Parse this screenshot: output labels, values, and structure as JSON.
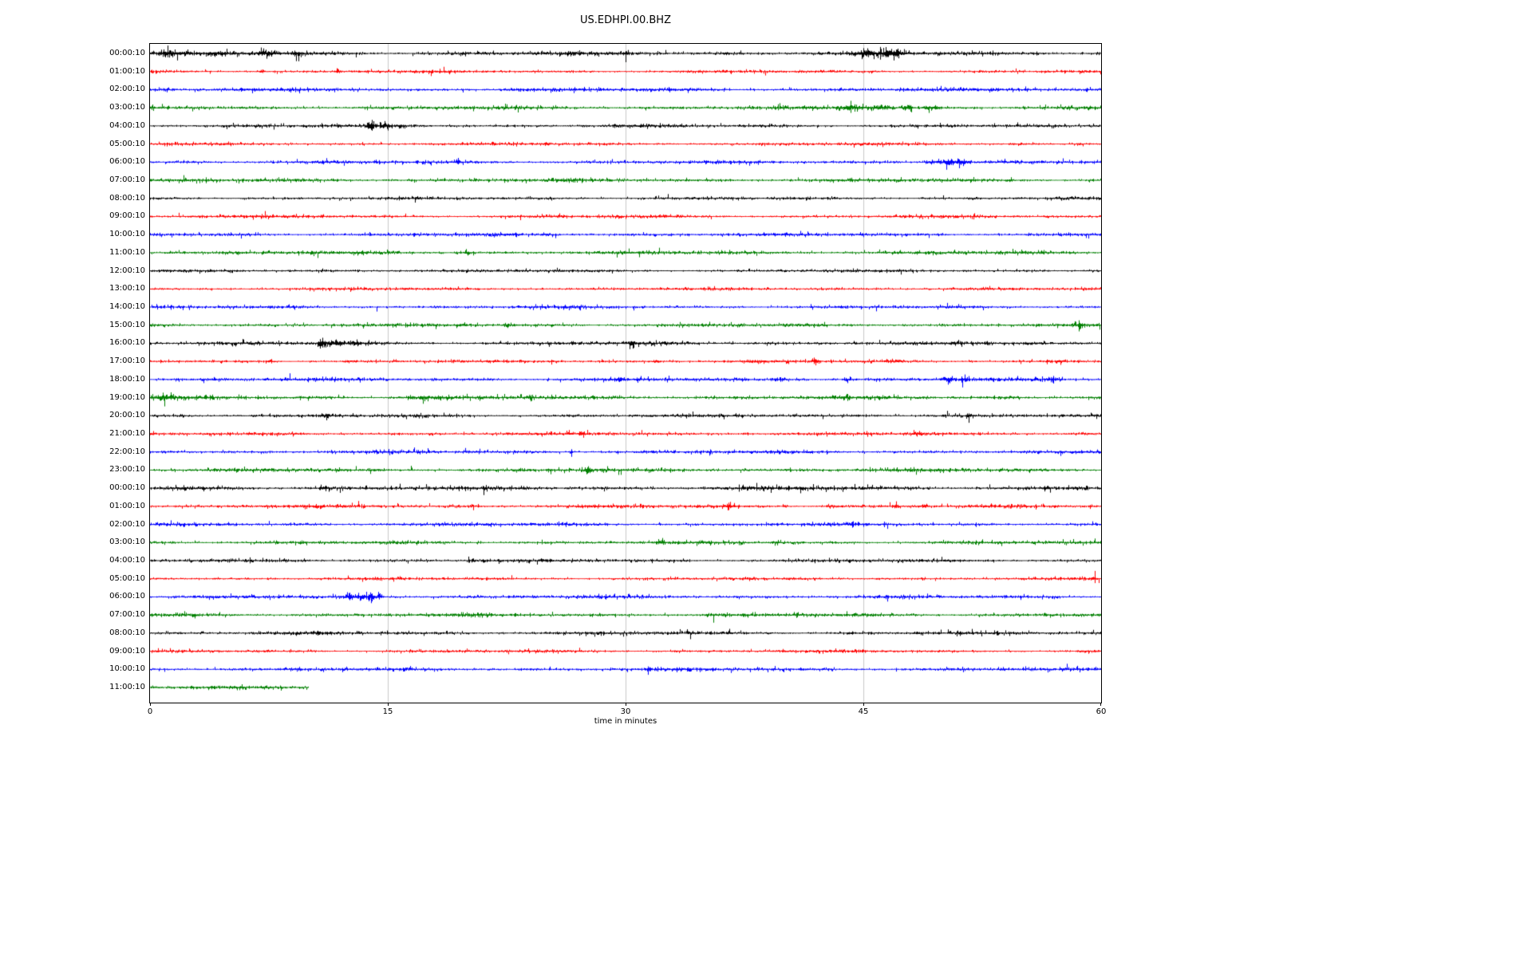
{
  "page": {
    "background": "#ffffff"
  },
  "chart_data": {
    "type": "line",
    "subtype": "seismogram_dayplot",
    "title": "US.EDHPI.00.BHZ",
    "xlabel": "time in minutes",
    "xlim": [
      0,
      60
    ],
    "x_ticks": [
      0,
      15,
      30,
      45,
      60
    ],
    "gridlines_x": [
      15,
      30,
      45
    ],
    "grid_color": "#c9c9c9",
    "axis_color": "#000000",
    "color_cycle": [
      "#000000",
      "#ff0000",
      "#0000ff",
      "#008000"
    ],
    "rows": [
      {
        "label": "00:00:10",
        "color": "#000000",
        "extent_min": 60,
        "base_amp": 1.7,
        "events": [
          {
            "t": 1.2,
            "a": 1.2,
            "d": 1.2
          },
          {
            "t": 4.5,
            "a": 0.6,
            "d": 0.8
          },
          {
            "t": 7.3,
            "a": 1.2,
            "d": 0.6
          },
          {
            "t": 9.3,
            "a": 1.0,
            "d": 0.5
          },
          {
            "t": 30.0,
            "a": 1.8,
            "d": 0.15
          },
          {
            "t": 36.3,
            "a": 0.8,
            "d": 0.2
          },
          {
            "t": 45.3,
            "a": 1.6,
            "d": 0.6
          },
          {
            "t": 46.9,
            "a": 1.8,
            "d": 0.9
          },
          {
            "t": 56.0,
            "a": 0.5,
            "d": 0.4
          }
        ]
      },
      {
        "label": "01:00:10",
        "color": "#ff0000",
        "extent_min": 60,
        "base_amp": 1.2,
        "events": [
          {
            "t": 7.0,
            "a": 2.8,
            "d": 0.25
          },
          {
            "t": 11.8,
            "a": 2.2,
            "d": 0.2
          }
        ]
      },
      {
        "label": "02:00:10",
        "color": "#0000ff",
        "extent_min": 60,
        "base_amp": 1.5,
        "events": [
          {
            "t": 23.0,
            "a": 0.5,
            "d": 0.5
          },
          {
            "t": 55.3,
            "a": 1.2,
            "d": 0.2
          }
        ]
      },
      {
        "label": "03:00:10",
        "color": "#008000",
        "extent_min": 60,
        "base_amp": 1.5,
        "events": [
          {
            "t": 44.3,
            "a": 1.2,
            "d": 0.8
          },
          {
            "t": 46.0,
            "a": 1.8,
            "d": 0.8
          },
          {
            "t": 47.8,
            "a": 2.2,
            "d": 0.4
          },
          {
            "t": 49.3,
            "a": 1.4,
            "d": 0.6
          }
        ]
      },
      {
        "label": "04:00:10",
        "color": "#000000",
        "extent_min": 60,
        "base_amp": 1.3,
        "events": [
          {
            "t": 13.9,
            "a": 3.5,
            "d": 0.25
          },
          {
            "t": 14.8,
            "a": 1.5,
            "d": 0.7
          },
          {
            "t": 15.8,
            "a": 1.0,
            "d": 0.5
          }
        ]
      },
      {
        "label": "05:00:10",
        "color": "#ff0000",
        "extent_min": 60,
        "base_amp": 1.2,
        "events": [
          {
            "t": 25.0,
            "a": 2.0,
            "d": 0.25
          },
          {
            "t": 54.5,
            "a": 0.8,
            "d": 0.3
          },
          {
            "t": 58.5,
            "a": 1.0,
            "d": 0.3
          }
        ]
      },
      {
        "label": "06:00:10",
        "color": "#0000ff",
        "extent_min": 60,
        "base_amp": 1.4,
        "events": [
          {
            "t": 19.4,
            "a": 2.2,
            "d": 0.18
          },
          {
            "t": 49.3,
            "a": 2.0,
            "d": 0.6
          },
          {
            "t": 50.3,
            "a": 4.5,
            "d": 0.5
          },
          {
            "t": 51.2,
            "a": 2.5,
            "d": 0.5
          }
        ]
      },
      {
        "label": "07:00:10",
        "color": "#008000",
        "extent_min": 60,
        "base_amp": 1.5,
        "events": []
      },
      {
        "label": "08:00:10",
        "color": "#000000",
        "extent_min": 60,
        "base_amp": 1.2,
        "events": []
      },
      {
        "label": "09:00:10",
        "color": "#ff0000",
        "extent_min": 60,
        "base_amp": 1.3,
        "events": []
      },
      {
        "label": "10:00:10",
        "color": "#0000ff",
        "extent_min": 60,
        "base_amp": 1.4,
        "events": [
          {
            "t": 25.0,
            "a": 0.5,
            "d": 0.5
          }
        ]
      },
      {
        "label": "11:00:10",
        "color": "#008000",
        "extent_min": 60,
        "base_amp": 1.5,
        "events": [
          {
            "t": 1.5,
            "a": 0.7,
            "d": 1.2
          },
          {
            "t": 20.0,
            "a": 1.6,
            "d": 0.2
          }
        ]
      },
      {
        "label": "12:00:10",
        "color": "#000000",
        "extent_min": 60,
        "base_amp": 1.2,
        "events": [
          {
            "t": 9.0,
            "a": 0.6,
            "d": 0.3
          }
        ]
      },
      {
        "label": "13:00:10",
        "color": "#ff0000",
        "extent_min": 60,
        "base_amp": 1.2,
        "events": []
      },
      {
        "label": "14:00:10",
        "color": "#0000ff",
        "extent_min": 60,
        "base_amp": 1.3,
        "events": []
      },
      {
        "label": "15:00:10",
        "color": "#008000",
        "extent_min": 60,
        "base_amp": 1.4,
        "events": [
          {
            "t": 19.7,
            "a": 1.2,
            "d": 0.5
          },
          {
            "t": 22.5,
            "a": 0.7,
            "d": 0.4
          },
          {
            "t": 58.6,
            "a": 1.1,
            "d": 0.4
          }
        ]
      },
      {
        "label": "16:00:10",
        "color": "#000000",
        "extent_min": 60,
        "base_amp": 1.4,
        "events": [
          {
            "t": 10.8,
            "a": 4.5,
            "d": 0.3
          },
          {
            "t": 11.6,
            "a": 2.2,
            "d": 0.6
          },
          {
            "t": 13.0,
            "a": 1.2,
            "d": 1.2
          },
          {
            "t": 30.4,
            "a": 1.6,
            "d": 0.3
          },
          {
            "t": 39.0,
            "a": 1.0,
            "d": 0.3
          },
          {
            "t": 44.5,
            "a": 0.8,
            "d": 0.3
          },
          {
            "t": 50.8,
            "a": 1.0,
            "d": 0.4
          },
          {
            "t": 52.8,
            "a": 1.0,
            "d": 0.3
          },
          {
            "t": 55.5,
            "a": 0.6,
            "d": 0.3
          }
        ]
      },
      {
        "label": "17:00:10",
        "color": "#ff0000",
        "extent_min": 60,
        "base_amp": 1.3,
        "events": [
          {
            "t": 7.5,
            "a": 2.5,
            "d": 0.4
          },
          {
            "t": 25.3,
            "a": 0.8,
            "d": 0.3
          },
          {
            "t": 32.0,
            "a": 0.7,
            "d": 0.3
          },
          {
            "t": 42.0,
            "a": 1.0,
            "d": 0.3
          },
          {
            "t": 47.0,
            "a": 1.1,
            "d": 0.4
          },
          {
            "t": 51.8,
            "a": 1.4,
            "d": 0.3
          },
          {
            "t": 57.3,
            "a": 1.0,
            "d": 0.3
          }
        ]
      },
      {
        "label": "18:00:10",
        "color": "#0000ff",
        "extent_min": 60,
        "base_amp": 1.5,
        "events": [
          {
            "t": 29.5,
            "a": 0.7,
            "d": 0.4
          },
          {
            "t": 39.8,
            "a": 1.3,
            "d": 0.6
          },
          {
            "t": 41.0,
            "a": 0.8,
            "d": 0.4
          },
          {
            "t": 44.0,
            "a": 1.1,
            "d": 0.4
          },
          {
            "t": 50.3,
            "a": 1.5,
            "d": 0.5
          },
          {
            "t": 51.3,
            "a": 1.5,
            "d": 0.4
          },
          {
            "t": 57.0,
            "a": 1.2,
            "d": 0.4
          }
        ]
      },
      {
        "label": "19:00:10",
        "color": "#008000",
        "extent_min": 60,
        "base_amp": 1.6,
        "events": [
          {
            "t": 0.8,
            "a": 1.0,
            "d": 0.7
          },
          {
            "t": 16.4,
            "a": 1.3,
            "d": 0.4
          },
          {
            "t": 17.2,
            "a": 1.7,
            "d": 0.4
          },
          {
            "t": 18.2,
            "a": 0.8,
            "d": 0.4
          },
          {
            "t": 24.0,
            "a": 1.2,
            "d": 0.25
          }
        ]
      },
      {
        "label": "20:00:10",
        "color": "#000000",
        "extent_min": 60,
        "base_amp": 1.3,
        "events": [
          {
            "t": 2.0,
            "a": 0.6,
            "d": 0.4
          },
          {
            "t": 6.5,
            "a": 0.6,
            "d": 0.4
          },
          {
            "t": 11.0,
            "a": 1.0,
            "d": 0.5
          },
          {
            "t": 27.0,
            "a": 0.5,
            "d": 0.4
          },
          {
            "t": 44.5,
            "a": 0.6,
            "d": 0.4
          },
          {
            "t": 51.6,
            "a": 2.4,
            "d": 0.2
          }
        ]
      },
      {
        "label": "21:00:10",
        "color": "#ff0000",
        "extent_min": 60,
        "base_amp": 1.3,
        "events": [
          {
            "t": 27.2,
            "a": 1.8,
            "d": 0.25
          },
          {
            "t": 37.6,
            "a": 1.6,
            "d": 0.3
          },
          {
            "t": 45.5,
            "a": 0.7,
            "d": 0.3
          },
          {
            "t": 48.5,
            "a": 0.6,
            "d": 0.3
          }
        ]
      },
      {
        "label": "22:00:10",
        "color": "#0000ff",
        "extent_min": 60,
        "base_amp": 1.4,
        "events": [
          {
            "t": 26.6,
            "a": 1.8,
            "d": 0.25
          },
          {
            "t": 29.5,
            "a": 0.7,
            "d": 0.3
          }
        ]
      },
      {
        "label": "23:00:10",
        "color": "#008000",
        "extent_min": 60,
        "base_amp": 1.5,
        "events": [
          {
            "t": 25.2,
            "a": 0.7,
            "d": 0.3
          },
          {
            "t": 27.6,
            "a": 1.7,
            "d": 0.3
          }
        ]
      },
      {
        "label": "00:00:10",
        "color": "#000000",
        "extent_min": 60,
        "base_amp": 1.6,
        "events": [
          {
            "t": 2.3,
            "a": 0.5,
            "d": 0.5
          },
          {
            "t": 11.0,
            "a": 1.3,
            "d": 0.6
          },
          {
            "t": 40.8,
            "a": 0.7,
            "d": 0.4
          },
          {
            "t": 56.5,
            "a": 1.1,
            "d": 0.4
          },
          {
            "t": 58.0,
            "a": 0.6,
            "d": 0.3
          }
        ]
      },
      {
        "label": "01:00:10",
        "color": "#ff0000",
        "extent_min": 60,
        "base_amp": 1.4,
        "events": [
          {
            "t": 20.3,
            "a": 0.7,
            "d": 0.3
          },
          {
            "t": 36.5,
            "a": 1.6,
            "d": 0.3
          },
          {
            "t": 40.0,
            "a": 1.2,
            "d": 0.3
          },
          {
            "t": 43.0,
            "a": 1.4,
            "d": 0.35
          },
          {
            "t": 47.0,
            "a": 1.5,
            "d": 0.35
          },
          {
            "t": 48.8,
            "a": 1.0,
            "d": 0.3
          },
          {
            "t": 59.3,
            "a": 1.0,
            "d": 0.3
          }
        ]
      },
      {
        "label": "02:00:10",
        "color": "#0000ff",
        "extent_min": 60,
        "base_amp": 1.4,
        "events": [
          {
            "t": 21.3,
            "a": 0.7,
            "d": 0.3
          }
        ]
      },
      {
        "label": "03:00:10",
        "color": "#008000",
        "extent_min": 60,
        "base_amp": 1.4,
        "events": [
          {
            "t": 32.3,
            "a": 1.0,
            "d": 0.3
          },
          {
            "t": 39.5,
            "a": 0.6,
            "d": 0.3
          }
        ]
      },
      {
        "label": "04:00:10",
        "color": "#000000",
        "extent_min": 60,
        "base_amp": 1.3,
        "events": [
          {
            "t": 20.3,
            "a": 1.4,
            "d": 0.4
          },
          {
            "t": 21.0,
            "a": 1.0,
            "d": 0.3
          },
          {
            "t": 24.8,
            "a": 0.6,
            "d": 0.3
          },
          {
            "t": 43.3,
            "a": 0.6,
            "d": 0.25
          }
        ]
      },
      {
        "label": "05:00:10",
        "color": "#ff0000",
        "extent_min": 60,
        "base_amp": 1.2,
        "events": [
          {
            "t": 59.6,
            "a": 0.9,
            "d": 0.3
          }
        ]
      },
      {
        "label": "06:00:10",
        "color": "#0000ff",
        "extent_min": 60,
        "base_amp": 1.4,
        "events": [
          {
            "t": 12.6,
            "a": 1.8,
            "d": 0.4
          },
          {
            "t": 13.4,
            "a": 2.2,
            "d": 0.4
          },
          {
            "t": 13.9,
            "a": 3.2,
            "d": 0.25
          },
          {
            "t": 14.4,
            "a": 1.4,
            "d": 0.3
          }
        ]
      },
      {
        "label": "07:00:10",
        "color": "#008000",
        "extent_min": 60,
        "base_amp": 1.5,
        "events": []
      },
      {
        "label": "08:00:10",
        "color": "#000000",
        "extent_min": 60,
        "base_amp": 1.4,
        "events": [
          {
            "t": 10.5,
            "a": 0.5,
            "d": 0.3
          },
          {
            "t": 34.0,
            "a": 0.4,
            "d": 0.3
          }
        ]
      },
      {
        "label": "09:00:10",
        "color": "#ff0000",
        "extent_min": 60,
        "base_amp": 1.2,
        "events": []
      },
      {
        "label": "10:00:10",
        "color": "#0000ff",
        "extent_min": 60,
        "base_amp": 1.4,
        "events": [
          {
            "t": 31.5,
            "a": 1.4,
            "d": 0.2
          }
        ]
      },
      {
        "label": "11:00:10",
        "color": "#008000",
        "extent_min": 10,
        "base_amp": 1.5,
        "events": []
      }
    ]
  }
}
